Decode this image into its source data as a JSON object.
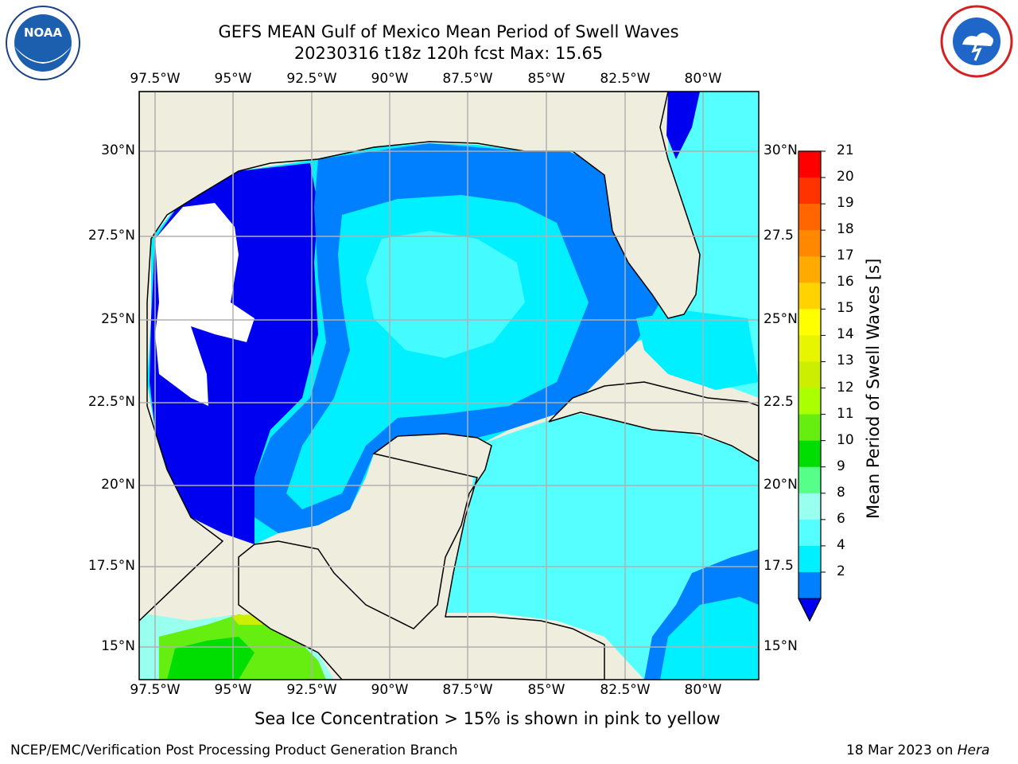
{
  "title_line1": "GEFS MEAN Gulf of Mexico Mean Period of Swell Waves",
  "title_line2": "20230316 t18z 120h fcst   Max: 15.65",
  "lon_labels": [
    "97.5°W",
    "95°W",
    "92.5°W",
    "90°W",
    "87.5°W",
    "85°W",
    "82.5°W",
    "80°W"
  ],
  "lat_labels_left": [
    "30°N",
    "27.5°N",
    "25°N",
    "22.5°N",
    "20°N",
    "17.5°N",
    "15°N"
  ],
  "lat_labels_right": [
    "30°N",
    "27.5",
    "25°N",
    "22.5",
    "20°N",
    "17.5",
    "15°N"
  ],
  "colorbar": {
    "title": "Mean Period of Swell Waves [s]",
    "ticks": [
      "21",
      "20",
      "19",
      "18",
      "17",
      "16",
      "15",
      "14",
      "13",
      "12",
      "11",
      "10",
      "9",
      "8",
      "6",
      "4",
      "2"
    ],
    "colors": [
      "#ff0000",
      "#ff3300",
      "#ff6600",
      "#ff8800",
      "#ffaa00",
      "#ffd200",
      "#ffff00",
      "#e8f500",
      "#ccee00",
      "#aaff00",
      "#66ee11",
      "#00dd00",
      "#55ff88",
      "#99ffee",
      "#55ffff",
      "#00f0ff",
      "#0080ff"
    ]
  },
  "sea_ice_note": "Sea Ice Concentration > 15% is shown in pink to yellow",
  "footer_left": "NCEP/EMC/Verification Post Processing Product Generation Branch",
  "footer_right_prefix": "18 Mar 2023 on ",
  "footer_right_host": "Hera",
  "logos": {
    "left": "NOAA",
    "right": "NATIONAL WEATHER SERVICE"
  },
  "palette": {
    "land": "#eeedde",
    "grid": "#b0b0b0"
  }
}
